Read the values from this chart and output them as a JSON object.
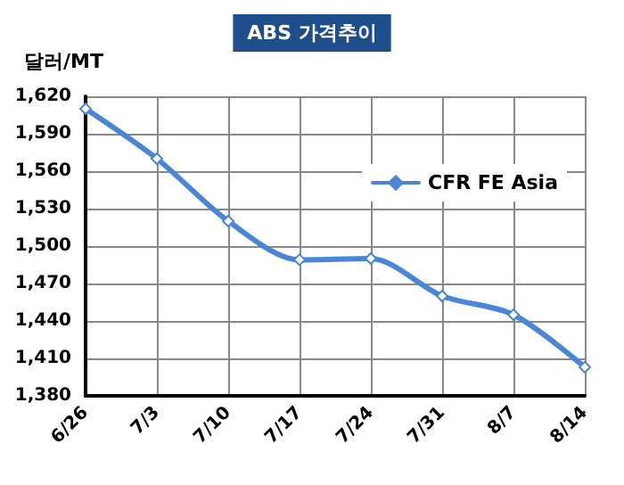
{
  "chart_data": {
    "type": "line",
    "title": "ABS 가격추이",
    "ylabel": "달러/MT",
    "categories": [
      "6/26",
      "7/3",
      "7/10",
      "7/17",
      "7/24",
      "7/31",
      "8/7",
      "8/14"
    ],
    "series": [
      {
        "name": "CFR FE Asia",
        "color": "#4a86d8",
        "values": [
          1610,
          1570,
          1520,
          1489,
          1490,
          1460,
          1445,
          1403
        ]
      }
    ],
    "ylim": [
      1380,
      1620
    ],
    "yticks": [
      {
        "value": 1380,
        "label": "1,380"
      },
      {
        "value": 1410,
        "label": "1,410"
      },
      {
        "value": 1440,
        "label": "1,440"
      },
      {
        "value": 1470,
        "label": "1,470"
      },
      {
        "value": 1500,
        "label": "1,500"
      },
      {
        "value": 1530,
        "label": "1,530"
      },
      {
        "value": 1560,
        "label": "1,560"
      },
      {
        "value": 1590,
        "label": "1,590"
      },
      {
        "value": 1620,
        "label": "1,620"
      }
    ],
    "grid": true,
    "legend": "top right",
    "marker": "diamond",
    "line_style": "solid"
  }
}
